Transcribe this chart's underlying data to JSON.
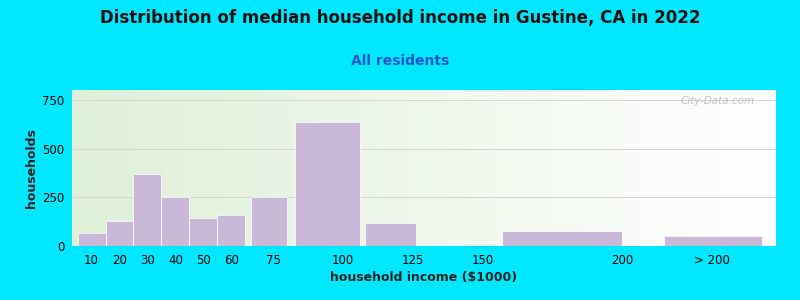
{
  "title": "Distribution of median household income in Gustine, CA in 2022",
  "subtitle": "All residents",
  "xlabel": "household income ($1000)",
  "ylabel": "households",
  "background_outer": "#00e8ff",
  "bar_color": "#c9b8d8",
  "bar_edge_color": "#ffffff",
  "title_fontsize": 12,
  "subtitle_fontsize": 10,
  "subtitle_color": "#2255cc",
  "axis_label_fontsize": 9,
  "tick_fontsize": 8.5,
  "yticks": [
    0,
    250,
    500,
    750
  ],
  "ylim": [
    0,
    800
  ],
  "bar_heights": [
    65,
    130,
    370,
    250,
    145,
    160,
    250,
    635,
    120,
    0,
    75,
    50
  ],
  "bar_lefts": [
    5,
    15,
    25,
    35,
    45,
    55,
    67,
    83,
    108,
    127,
    157,
    215
  ],
  "bar_widths": [
    10,
    10,
    10,
    10,
    10,
    10,
    13,
    23,
    18,
    10,
    43,
    35
  ],
  "xtick_positions": [
    10,
    20,
    30,
    40,
    50,
    60,
    75,
    100,
    125,
    150,
    200,
    232
  ],
  "xtick_labels": [
    "10",
    "20",
    "30",
    "40",
    "50",
    "60",
    "75",
    "100",
    "125",
    "150",
    "200",
    "> 200"
  ],
  "xlim_left": 3,
  "xlim_right": 255,
  "watermark": "City-Data.com"
}
